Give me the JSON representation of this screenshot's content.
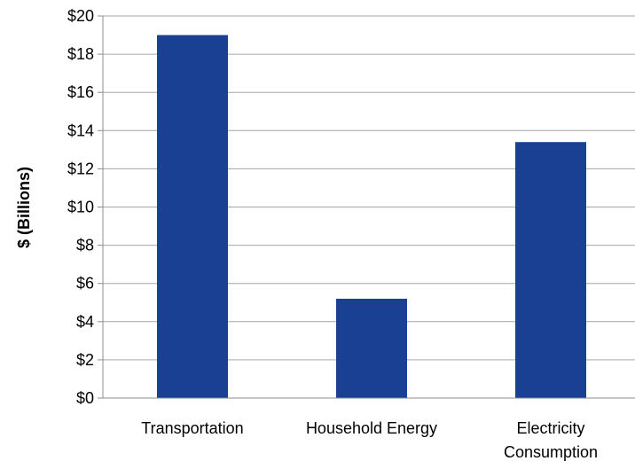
{
  "chart_data": {
    "type": "bar",
    "title": "",
    "xlabel": "",
    "ylabel": "$ (Billions)",
    "categories": [
      [
        "Transportation"
      ],
      [
        "Household Energy"
      ],
      [
        "Electricity",
        "Consumption"
      ]
    ],
    "values": [
      19.0,
      5.2,
      13.4
    ],
    "ylim": [
      0,
      20
    ],
    "yticks": [
      0,
      2,
      4,
      6,
      8,
      10,
      12,
      14,
      16,
      18,
      20
    ],
    "ytick_labels": [
      "$0",
      "$2",
      "$4",
      "$6",
      "$8",
      "$10",
      "$12",
      "$14",
      "$16",
      "$18",
      "$20"
    ],
    "grid": true,
    "legend": "none",
    "colors": {
      "bar": "#1a4094",
      "grid": "#a6a6a6",
      "axis": "#8c8c8c"
    }
  }
}
